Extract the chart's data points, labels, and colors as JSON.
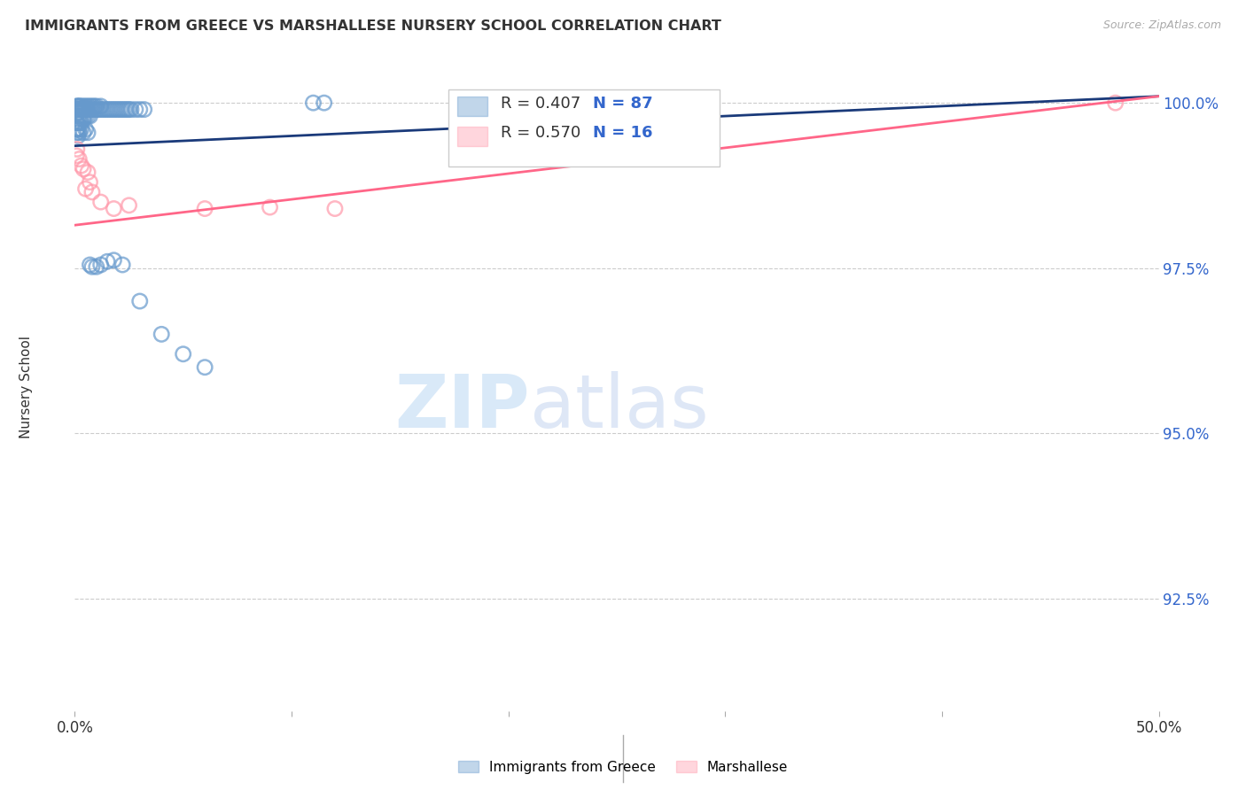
{
  "title": "IMMIGRANTS FROM GREECE VS MARSHALLESE NURSERY SCHOOL CORRELATION CHART",
  "source": "Source: ZipAtlas.com",
  "ylabel": "Nursery School",
  "ytick_labels": [
    "100.0%",
    "97.5%",
    "95.0%",
    "92.5%"
  ],
  "ytick_values": [
    1.0,
    0.975,
    0.95,
    0.925
  ],
  "xlim": [
    0.0,
    0.5
  ],
  "ylim": [
    0.908,
    1.006
  ],
  "blue_color": "#6699CC",
  "pink_color": "#FF99AA",
  "trendline_blue": "#1a3a7a",
  "trendline_pink": "#FF6688",
  "legend_r_color": "#FF6600",
  "legend_n_color": "#3366CC",
  "background_color": "#ffffff",
  "grid_color": "#cccccc",
  "blue_scatter_x": [
    0.0008,
    0.001,
    0.001,
    0.0012,
    0.0013,
    0.0015,
    0.0015,
    0.0015,
    0.002,
    0.002,
    0.002,
    0.002,
    0.0022,
    0.0025,
    0.003,
    0.003,
    0.003,
    0.003,
    0.003,
    0.0035,
    0.004,
    0.004,
    0.004,
    0.004,
    0.0045,
    0.005,
    0.005,
    0.005,
    0.006,
    0.006,
    0.006,
    0.007,
    0.007,
    0.007,
    0.008,
    0.008,
    0.009,
    0.009,
    0.01,
    0.01,
    0.011,
    0.012,
    0.012,
    0.013,
    0.014,
    0.015,
    0.016,
    0.017,
    0.018,
    0.019,
    0.02,
    0.021,
    0.022,
    0.023,
    0.024,
    0.025,
    0.026,
    0.028,
    0.03,
    0.032,
    0.001,
    0.001,
    0.001,
    0.0008,
    0.0009,
    0.001,
    0.0012,
    0.0015,
    0.002,
    0.002,
    0.003,
    0.004,
    0.005,
    0.006,
    0.007,
    0.008,
    0.01,
    0.012,
    0.015,
    0.018,
    0.022,
    0.03,
    0.04,
    0.05,
    0.06,
    0.11,
    0.115
  ],
  "blue_scatter_y": [
    0.999,
    0.9995,
    0.999,
    0.9995,
    0.999,
    0.999,
    0.9985,
    0.9985,
    0.9995,
    0.999,
    0.998,
    0.997,
    0.9995,
    0.999,
    0.9995,
    0.999,
    0.999,
    0.998,
    0.997,
    0.999,
    0.9995,
    0.999,
    0.998,
    0.9975,
    0.999,
    0.9995,
    0.999,
    0.998,
    0.9995,
    0.999,
    0.998,
    0.9995,
    0.999,
    0.998,
    0.9995,
    0.999,
    0.9995,
    0.999,
    0.9995,
    0.999,
    0.999,
    0.9995,
    0.999,
    0.999,
    0.999,
    0.999,
    0.999,
    0.999,
    0.999,
    0.999,
    0.999,
    0.999,
    0.999,
    0.999,
    0.999,
    0.999,
    0.999,
    0.999,
    0.999,
    0.999,
    0.997,
    0.996,
    0.9955,
    0.997,
    0.996,
    0.996,
    0.996,
    0.995,
    0.996,
    0.9955,
    0.996,
    0.9955,
    0.996,
    0.9955,
    0.9755,
    0.9752,
    0.9752,
    0.9755,
    0.976,
    0.9762,
    0.9755,
    0.97,
    0.965,
    0.962,
    0.96,
    1.0,
    1.0
  ],
  "pink_scatter_x": [
    0.0008,
    0.001,
    0.002,
    0.003,
    0.004,
    0.005,
    0.006,
    0.007,
    0.008,
    0.012,
    0.018,
    0.025,
    0.06,
    0.09,
    0.12,
    0.48
  ],
  "pink_scatter_y": [
    0.992,
    0.993,
    0.9915,
    0.9905,
    0.99,
    0.987,
    0.9895,
    0.988,
    0.9865,
    0.985,
    0.984,
    0.9845,
    0.984,
    0.9842,
    0.984,
    1.0
  ],
  "blue_trend_x0": 0.0,
  "blue_trend_x1": 0.5,
  "blue_trend_y0": 0.9935,
  "blue_trend_y1": 1.001,
  "pink_trend_x0": 0.0,
  "pink_trend_x1": 0.5,
  "pink_trend_y0": 0.9815,
  "pink_trend_y1": 1.001
}
